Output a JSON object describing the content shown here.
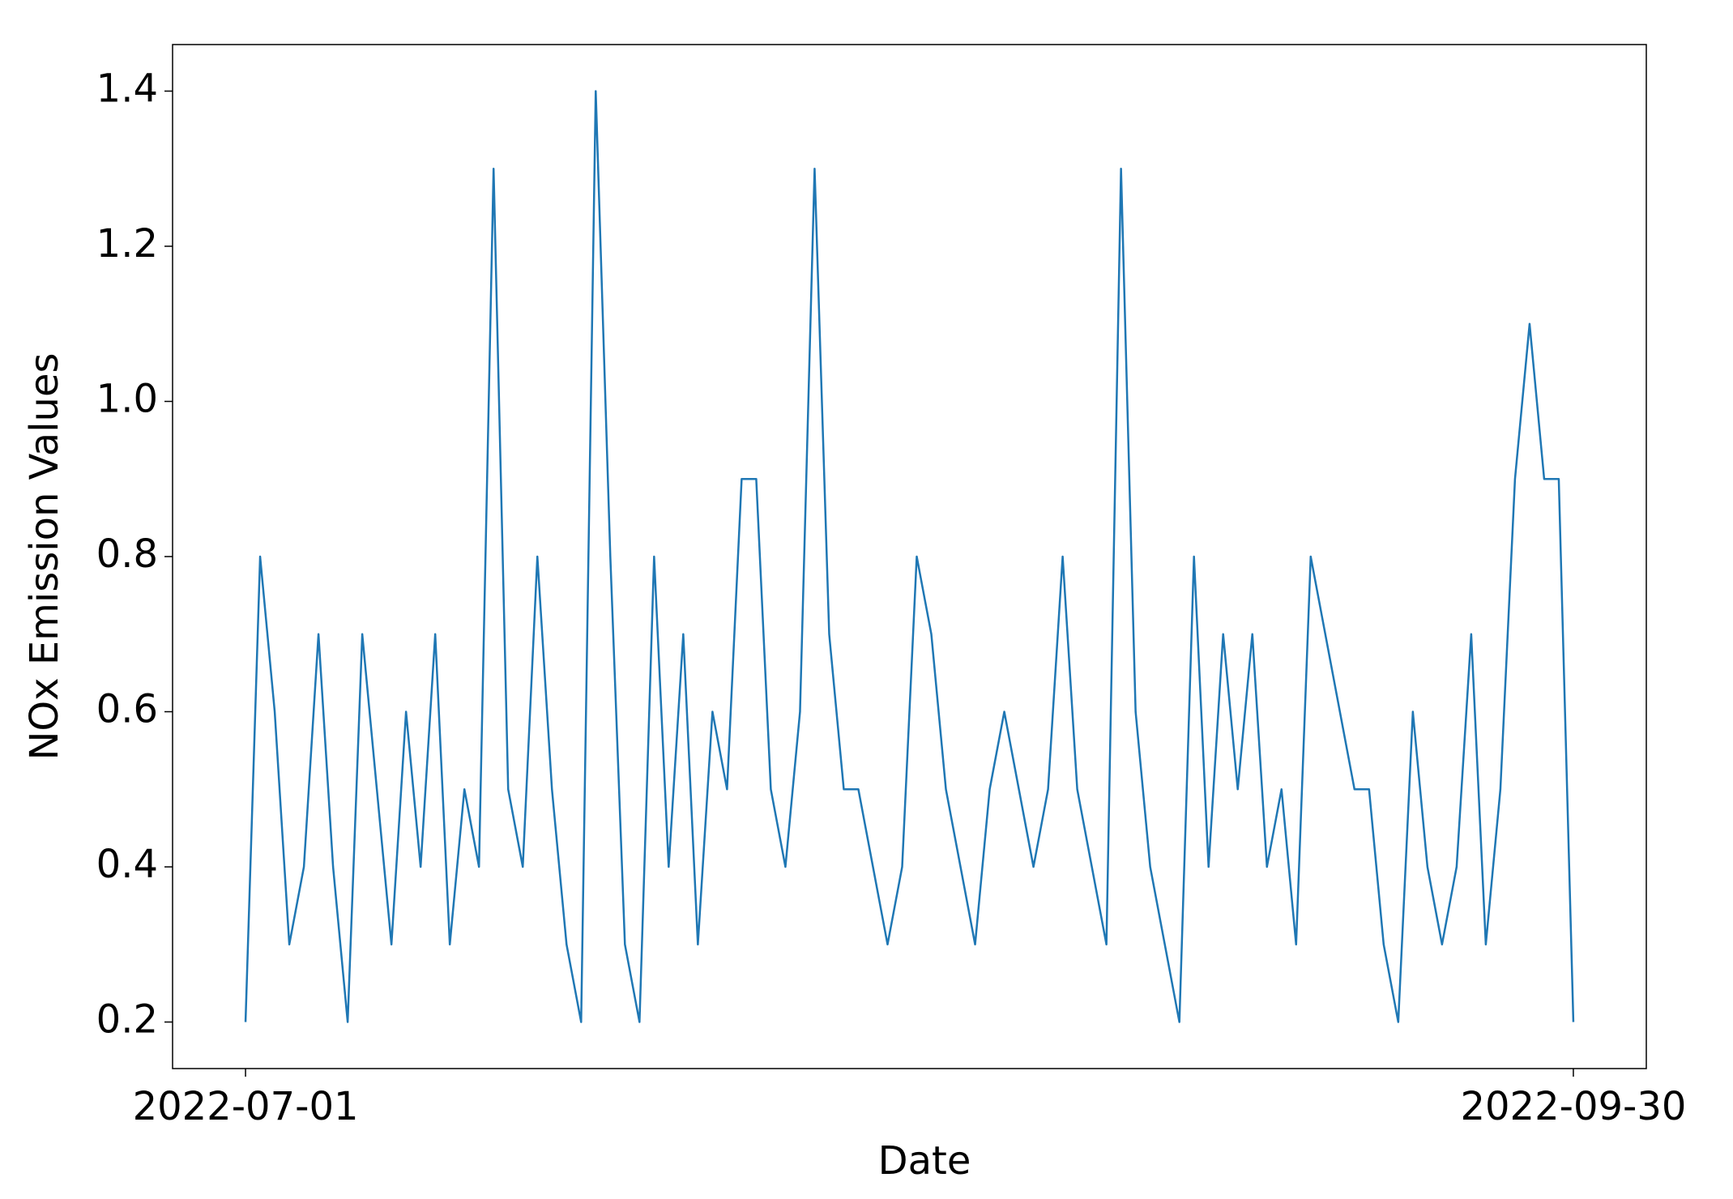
{
  "chart_data": {
    "type": "line",
    "xlabel": "Date",
    "ylabel": "NOx Emission Values",
    "x": [
      "2022-07-01",
      "2022-07-02",
      "2022-07-03",
      "2022-07-04",
      "2022-07-05",
      "2022-07-06",
      "2022-07-07",
      "2022-07-08",
      "2022-07-09",
      "2022-07-10",
      "2022-07-11",
      "2022-07-12",
      "2022-07-13",
      "2022-07-14",
      "2022-07-15",
      "2022-07-16",
      "2022-07-17",
      "2022-07-18",
      "2022-07-19",
      "2022-07-20",
      "2022-07-21",
      "2022-07-22",
      "2022-07-23",
      "2022-07-24",
      "2022-07-25",
      "2022-07-26",
      "2022-07-27",
      "2022-07-28",
      "2022-07-29",
      "2022-07-30",
      "2022-07-31",
      "2022-08-01",
      "2022-08-02",
      "2022-08-03",
      "2022-08-04",
      "2022-08-05",
      "2022-08-06",
      "2022-08-07",
      "2022-08-08",
      "2022-08-09",
      "2022-08-10",
      "2022-08-11",
      "2022-08-12",
      "2022-08-13",
      "2022-08-14",
      "2022-08-15",
      "2022-08-16",
      "2022-08-17",
      "2022-08-18",
      "2022-08-19",
      "2022-08-20",
      "2022-08-21",
      "2022-08-22",
      "2022-08-23",
      "2022-08-24",
      "2022-08-25",
      "2022-08-26",
      "2022-08-27",
      "2022-08-28",
      "2022-08-29",
      "2022-08-30",
      "2022-08-31",
      "2022-09-01",
      "2022-09-02",
      "2022-09-03",
      "2022-09-04",
      "2022-09-05",
      "2022-09-06",
      "2022-09-07",
      "2022-09-08",
      "2022-09-09",
      "2022-09-10",
      "2022-09-11",
      "2022-09-12",
      "2022-09-13",
      "2022-09-14",
      "2022-09-15",
      "2022-09-16",
      "2022-09-17",
      "2022-09-18",
      "2022-09-19",
      "2022-09-20",
      "2022-09-21",
      "2022-09-22",
      "2022-09-23",
      "2022-09-24",
      "2022-09-25",
      "2022-09-26",
      "2022-09-27",
      "2022-09-28",
      "2022-09-29",
      "2022-09-30"
    ],
    "series": [
      {
        "color": "#1f77b4",
        "values": [
          0.2,
          0.8,
          0.6,
          0.3,
          0.4,
          0.7,
          0.4,
          0.2,
          0.7,
          0.5,
          0.3,
          0.6,
          0.4,
          0.7,
          0.3,
          0.5,
          0.4,
          1.3,
          0.5,
          0.4,
          0.8,
          0.5,
          0.3,
          0.2,
          1.4,
          0.8,
          0.3,
          0.2,
          0.8,
          0.4,
          0.7,
          0.3,
          0.6,
          0.5,
          0.9,
          0.9,
          0.5,
          0.4,
          0.6,
          1.3,
          0.7,
          0.5,
          0.5,
          0.4,
          0.3,
          0.4,
          0.8,
          0.7,
          0.5,
          0.4,
          0.3,
          0.5,
          0.6,
          0.5,
          0.4,
          0.5,
          0.8,
          0.5,
          0.4,
          0.3,
          1.3,
          0.6,
          0.4,
          0.3,
          0.2,
          0.8,
          0.4,
          0.7,
          0.5,
          0.7,
          0.4,
          0.5,
          0.3,
          0.8,
          0.7,
          0.6,
          0.5,
          0.5,
          0.3,
          0.2,
          0.6,
          0.4,
          0.3,
          0.4,
          0.7,
          0.3,
          0.5,
          0.9,
          1.1,
          0.9,
          0.9,
          0.2
        ]
      }
    ],
    "xlim": [
      "2022-06-26",
      "2022-10-05"
    ],
    "xticks": [
      "2022-07-01",
      "2022-09-30"
    ],
    "ylim": [
      0.14,
      1.46
    ],
    "yticks": [
      0.2,
      0.4,
      0.6,
      0.8,
      {
        "value": 1,
        "label": "1.0"
      },
      1.2,
      1.4
    ],
    "grid": false
  }
}
